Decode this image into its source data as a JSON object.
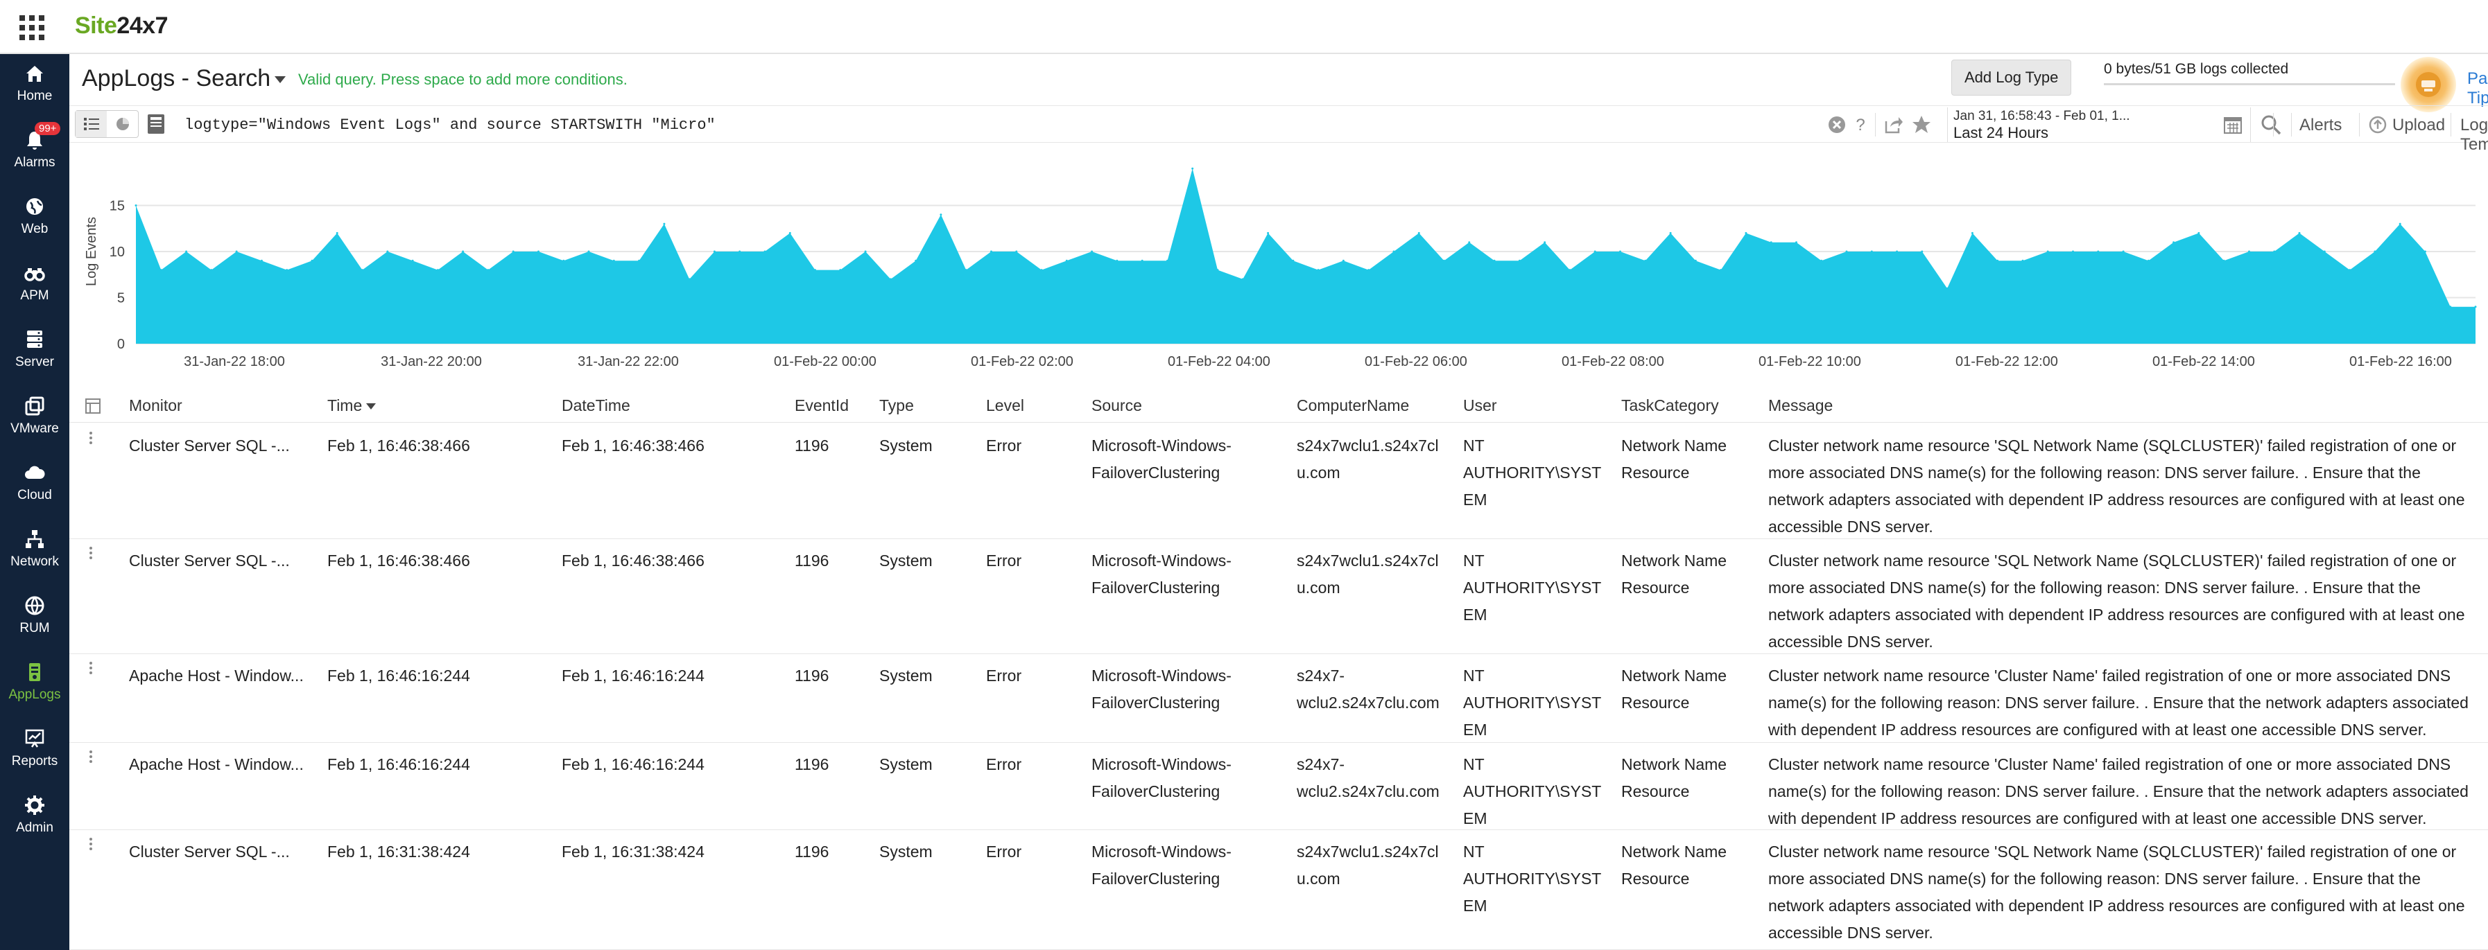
{
  "topbar": {
    "logo_site": "Site",
    "logo_num": "24x7"
  },
  "sidebar": {
    "alarm_badge": "99+",
    "items": [
      {
        "label": "Home",
        "icon": "home-icon"
      },
      {
        "label": "Alarms",
        "icon": "bell-icon"
      },
      {
        "label": "Web",
        "icon": "globe-icon"
      },
      {
        "label": "APM",
        "icon": "binoculars-icon"
      },
      {
        "label": "Server",
        "icon": "server-icon"
      },
      {
        "label": "VMware",
        "icon": "vm-icon"
      },
      {
        "label": "Cloud",
        "icon": "cloud-icon"
      },
      {
        "label": "Network",
        "icon": "network-icon"
      },
      {
        "label": "RUM",
        "icon": "rum-globe-icon"
      },
      {
        "label": "AppLogs",
        "icon": "applogs-icon"
      },
      {
        "label": "Reports",
        "icon": "reports-icon"
      },
      {
        "label": "Admin",
        "icon": "gear-icon"
      }
    ],
    "active": "AppLogs"
  },
  "header": {
    "title": "AppLogs - Search",
    "valid_message": "Valid query. Press space to add more conditions.",
    "add_log_type": "Add Log Type",
    "collected": "0 bytes/51 GB logs collected",
    "collected_fraction": 0.0,
    "page_tips": "Page Tips"
  },
  "query": {
    "text": "logtype=\"Windows Event Logs\" and source STARTSWITH \"Micro\"",
    "time_range": "Jan 31, 16:58:43 - Feb 01, 1...",
    "time_preset": "Last 24 Hours",
    "alerts": "Alerts",
    "upload": "Upload",
    "log_templates": "Log Templates"
  },
  "colors": {
    "accent_green": "#7cc242",
    "area_fill": "#1ec8e6",
    "sidebar_bg": "#12233a",
    "link_blue": "#2a7bd4"
  },
  "chart_data": {
    "type": "area",
    "ylabel": "Log Events",
    "ylim": [
      0,
      20
    ],
    "yticks": [
      0,
      5,
      10,
      15
    ],
    "grid": true,
    "x_tick_labels": [
      "31-Jan-22 18:00",
      "31-Jan-22 20:00",
      "31-Jan-22 22:00",
      "01-Feb-22 00:00",
      "01-Feb-22 02:00",
      "01-Feb-22 04:00",
      "01-Feb-22 06:00",
      "01-Feb-22 08:00",
      "01-Feb-22 10:00",
      "01-Feb-22 12:00",
      "01-Feb-22 14:00",
      "01-Feb-22 16:00"
    ],
    "series": [
      {
        "values": [
          15,
          8,
          10,
          8,
          10,
          9,
          8,
          9,
          12,
          8,
          10,
          9,
          8,
          10,
          8,
          10,
          10,
          9,
          10,
          9,
          9,
          13,
          7,
          10,
          10,
          10,
          12,
          8,
          8,
          10,
          7,
          9,
          14,
          8,
          10,
          10,
          8,
          9,
          10,
          9,
          9,
          9,
          19,
          8,
          7,
          12,
          9,
          8,
          9,
          8,
          10,
          12,
          9,
          11,
          9,
          9,
          11,
          8,
          10,
          10,
          9,
          12,
          9,
          8,
          12,
          11,
          11,
          9,
          10,
          10,
          10,
          10,
          6,
          12,
          9,
          9,
          10,
          10,
          10,
          10,
          9,
          11,
          12,
          9,
          10,
          10,
          12,
          10,
          8,
          10,
          13,
          10,
          4,
          4
        ]
      }
    ]
  },
  "table": {
    "columns": [
      "Monitor",
      "Time",
      "DateTime",
      "EventId",
      "Type",
      "Level",
      "Source",
      "ComputerName",
      "User",
      "TaskCategory",
      "Message"
    ],
    "sorted_column": "Time",
    "rows": [
      {
        "monitor": "Cluster Server SQL -...",
        "time": "Feb 1, 16:46:38:466",
        "datetime": "Feb 1, 16:46:38:466",
        "eventid": "1196",
        "type": "System",
        "level": "Error",
        "source_l1": "Microsoft-Windows-",
        "source_l2": "FailoverClustering",
        "computer_l1": "s24x7wclu1.s24x7cl",
        "computer_l2": "u.com",
        "user_l1": "NT",
        "user_l2": "AUTHORITY\\SYST",
        "user_l3": "EM",
        "task_l1": "Network Name",
        "task_l2": "Resource",
        "msg_l1": "Cluster network name resource 'SQL Network Name (SQLCLUSTER)' failed registration of one or",
        "msg_l2": "more associated DNS name(s) for the following reason: DNS server failure. . Ensure that the",
        "msg_l3": "network adapters associated with dependent IP address resources are configured with at least one",
        "msg_l4": "accessible DNS server."
      },
      {
        "monitor": "Cluster Server SQL -...",
        "time": "Feb 1, 16:46:38:466",
        "datetime": "Feb 1, 16:46:38:466",
        "eventid": "1196",
        "type": "System",
        "level": "Error",
        "source_l1": "Microsoft-Windows-",
        "source_l2": "FailoverClustering",
        "computer_l1": "s24x7wclu1.s24x7cl",
        "computer_l2": "u.com",
        "user_l1": "NT",
        "user_l2": "AUTHORITY\\SYST",
        "user_l3": "EM",
        "task_l1": "Network Name",
        "task_l2": "Resource",
        "msg_l1": "Cluster network name resource 'SQL Network Name (SQLCLUSTER)' failed registration of one or",
        "msg_l2": "more associated DNS name(s) for the following reason: DNS server failure. . Ensure that the",
        "msg_l3": "network adapters associated with dependent IP address resources are configured with at least one",
        "msg_l4": "accessible DNS server."
      },
      {
        "monitor": "Apache Host - Window...",
        "time": "Feb 1, 16:46:16:244",
        "datetime": "Feb 1, 16:46:16:244",
        "eventid": "1196",
        "type": "System",
        "level": "Error",
        "source_l1": "Microsoft-Windows-",
        "source_l2": "FailoverClustering",
        "computer_l1": "s24x7-",
        "computer_l2": "wclu2.s24x7clu.com",
        "user_l1": "NT",
        "user_l2": "AUTHORITY\\SYST",
        "user_l3": "EM",
        "task_l1": "Network Name",
        "task_l2": "Resource",
        "msg_l1": "Cluster network name resource 'Cluster Name' failed registration of one or more associated DNS",
        "msg_l2": "name(s) for the following reason: DNS server failure. . Ensure that the network adapters associated",
        "msg_l3": "with dependent IP address resources are configured with at least one accessible DNS server.",
        "msg_l4": ""
      },
      {
        "monitor": "Apache Host - Window...",
        "time": "Feb 1, 16:46:16:244",
        "datetime": "Feb 1, 16:46:16:244",
        "eventid": "1196",
        "type": "System",
        "level": "Error",
        "source_l1": "Microsoft-Windows-",
        "source_l2": "FailoverClustering",
        "computer_l1": "s24x7-",
        "computer_l2": "wclu2.s24x7clu.com",
        "user_l1": "NT",
        "user_l2": "AUTHORITY\\SYST",
        "user_l3": "EM",
        "task_l1": "Network Name",
        "task_l2": "Resource",
        "msg_l1": "Cluster network name resource 'Cluster Name' failed registration of one or more associated DNS",
        "msg_l2": "name(s) for the following reason: DNS server failure. . Ensure that the network adapters associated",
        "msg_l3": "with dependent IP address resources are configured with at least one accessible DNS server.",
        "msg_l4": ""
      },
      {
        "monitor": "Cluster Server SQL -...",
        "time": "Feb 1, 16:31:38:424",
        "datetime": "Feb 1, 16:31:38:424",
        "eventid": "1196",
        "type": "System",
        "level": "Error",
        "source_l1": "Microsoft-Windows-",
        "source_l2": "FailoverClustering",
        "computer_l1": "s24x7wclu1.s24x7cl",
        "computer_l2": "u.com",
        "user_l1": "NT",
        "user_l2": "AUTHORITY\\SYST",
        "user_l3": "EM",
        "task_l1": "Network Name",
        "task_l2": "Resource",
        "msg_l1": "Cluster network name resource 'SQL Network Name (SQLCLUSTER)' failed registration of one or",
        "msg_l2": "more associated DNS name(s) for the following reason: DNS server failure. . Ensure that the",
        "msg_l3": "network adapters associated with dependent IP address resources are configured with at least one",
        "msg_l4": "accessible DNS server."
      }
    ]
  }
}
